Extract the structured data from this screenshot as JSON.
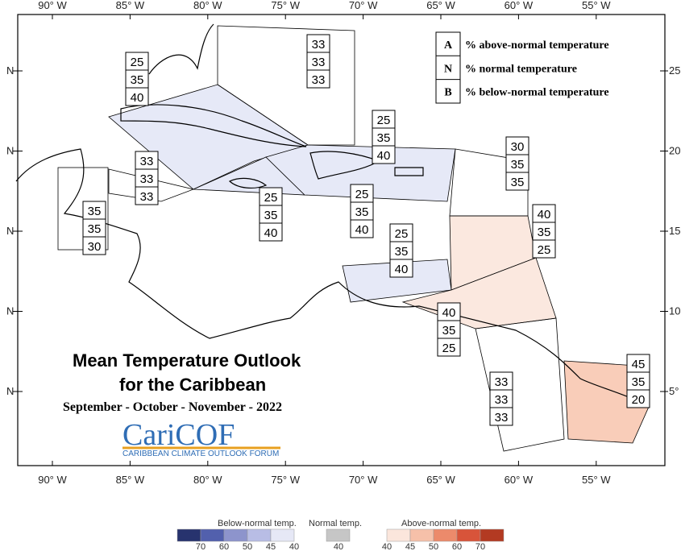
{
  "map": {
    "lon_labels": [
      "90° W",
      "85° W",
      "80° W",
      "75° W",
      "70° W",
      "65° W",
      "60° W",
      "55° W"
    ],
    "left_lat_labels": [
      "N",
      "N",
      "N",
      "N",
      "N"
    ],
    "right_lat_labels": [
      "25",
      "20",
      "15",
      "10",
      "5°"
    ],
    "key": [
      {
        "letter": "A",
        "text": "% above-normal temperature"
      },
      {
        "letter": "N",
        "text": "% normal temperature"
      },
      {
        "letter": "B",
        "text": "% below-normal temperature"
      }
    ],
    "regions": [
      {
        "values": [
          33,
          33,
          33
        ]
      },
      {
        "values": [
          25,
          35,
          40
        ]
      },
      {
        "values": [
          33,
          33,
          33
        ]
      },
      {
        "values": [
          35,
          35,
          30
        ]
      },
      {
        "values": [
          25,
          35,
          40
        ]
      },
      {
        "values": [
          25,
          35,
          40
        ]
      },
      {
        "values": [
          25,
          35,
          40
        ]
      },
      {
        "values": [
          30,
          35,
          35
        ]
      },
      {
        "values": [
          40,
          35,
          25
        ]
      },
      {
        "values": [
          25,
          35,
          40
        ]
      },
      {
        "values": [
          40,
          35,
          25
        ]
      },
      {
        "values": [
          33,
          33,
          33
        ]
      },
      {
        "values": [
          45,
          35,
          20
        ]
      }
    ],
    "title_line1": "Mean Temperature Outlook",
    "title_line2": "for the Caribbean",
    "season": "September - October - November - 2022",
    "logo": "CariCOF",
    "logo_subtitle": "CARIBBEAN CLIMATE OUTLOOK FORUM",
    "legend": {
      "below_title": "Below-normal temp.",
      "below_ticks": [
        70,
        60,
        50,
        45,
        40
      ],
      "normal_title": "Normal temp.",
      "normal_ticks": [
        40
      ],
      "above_title": "Above-normal temp.",
      "above_ticks": [
        40,
        45,
        50,
        60,
        70
      ]
    }
  }
}
